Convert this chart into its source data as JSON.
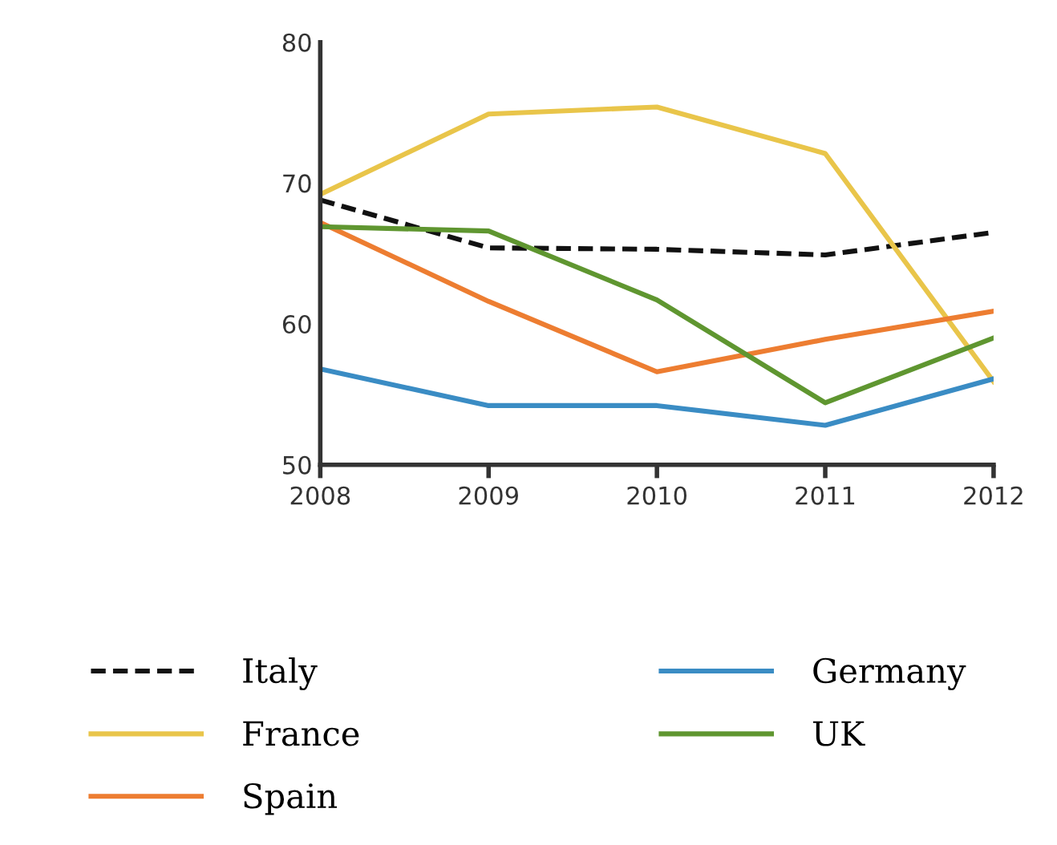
{
  "chart_data": {
    "type": "line",
    "categories": [
      "2008",
      "2009",
      "2010",
      "2011",
      "2012"
    ],
    "ylim": [
      50,
      80
    ],
    "yticks": [
      50,
      60,
      70,
      80
    ],
    "grid": false,
    "legend": "bottom",
    "marker": "none",
    "series": [
      {
        "name": "Italy",
        "color": "#111111",
        "line_style": "dashed",
        "values": [
          68.8,
          65.4,
          65.3,
          64.9,
          66.5
        ]
      },
      {
        "name": "France",
        "color": "#e9c54a",
        "line_style": "solid",
        "values": [
          69.2,
          74.9,
          75.4,
          72.1,
          55.9
        ]
      },
      {
        "name": "Spain",
        "color": "#ed7d31",
        "line_style": "solid",
        "values": [
          67.2,
          61.6,
          56.6,
          58.9,
          60.9
        ]
      },
      {
        "name": "Germany",
        "color": "#3a8cc4",
        "line_style": "solid",
        "values": [
          56.8,
          54.2,
          54.2,
          52.8,
          56.1
        ]
      },
      {
        "name": "UK",
        "color": "#5f9630",
        "line_style": "solid",
        "values": [
          66.9,
          66.6,
          61.7,
          54.4,
          59.0
        ]
      }
    ]
  }
}
